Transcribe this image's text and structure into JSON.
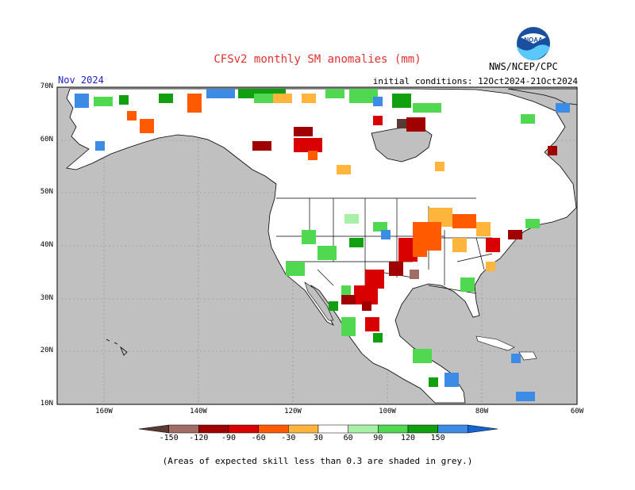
{
  "title": "CFSv2 monthly SM anomalies (mm)",
  "period": "Nov 2024",
  "initial_conditions": "initial conditions: 12Oct2024-21Oct2024",
  "agency": "NWS/NCEP/CPC",
  "logo_text": "NOAA",
  "lat_labels": [
    "70N",
    "60N",
    "50N",
    "40N",
    "30N",
    "20N",
    "10N"
  ],
  "lon_labels": [
    "160W",
    "140W",
    "120W",
    "100W",
    "80W",
    "60W"
  ],
  "colorbar": {
    "labels": [
      "-150",
      "-120",
      "-90",
      "-60",
      "-30",
      "30",
      "60",
      "90",
      "120",
      "150"
    ],
    "colors": [
      "#5a3a32",
      "#a06e64",
      "#a00000",
      "#d80000",
      "#ff5a00",
      "#ffb43c",
      "#ffffff",
      "#a8f0a8",
      "#50d850",
      "#10a010",
      "#3c8ce6",
      "#1464d2"
    ]
  },
  "footnote": "(Areas of expected skill less than 0.3 are shaded in grey.)"
}
